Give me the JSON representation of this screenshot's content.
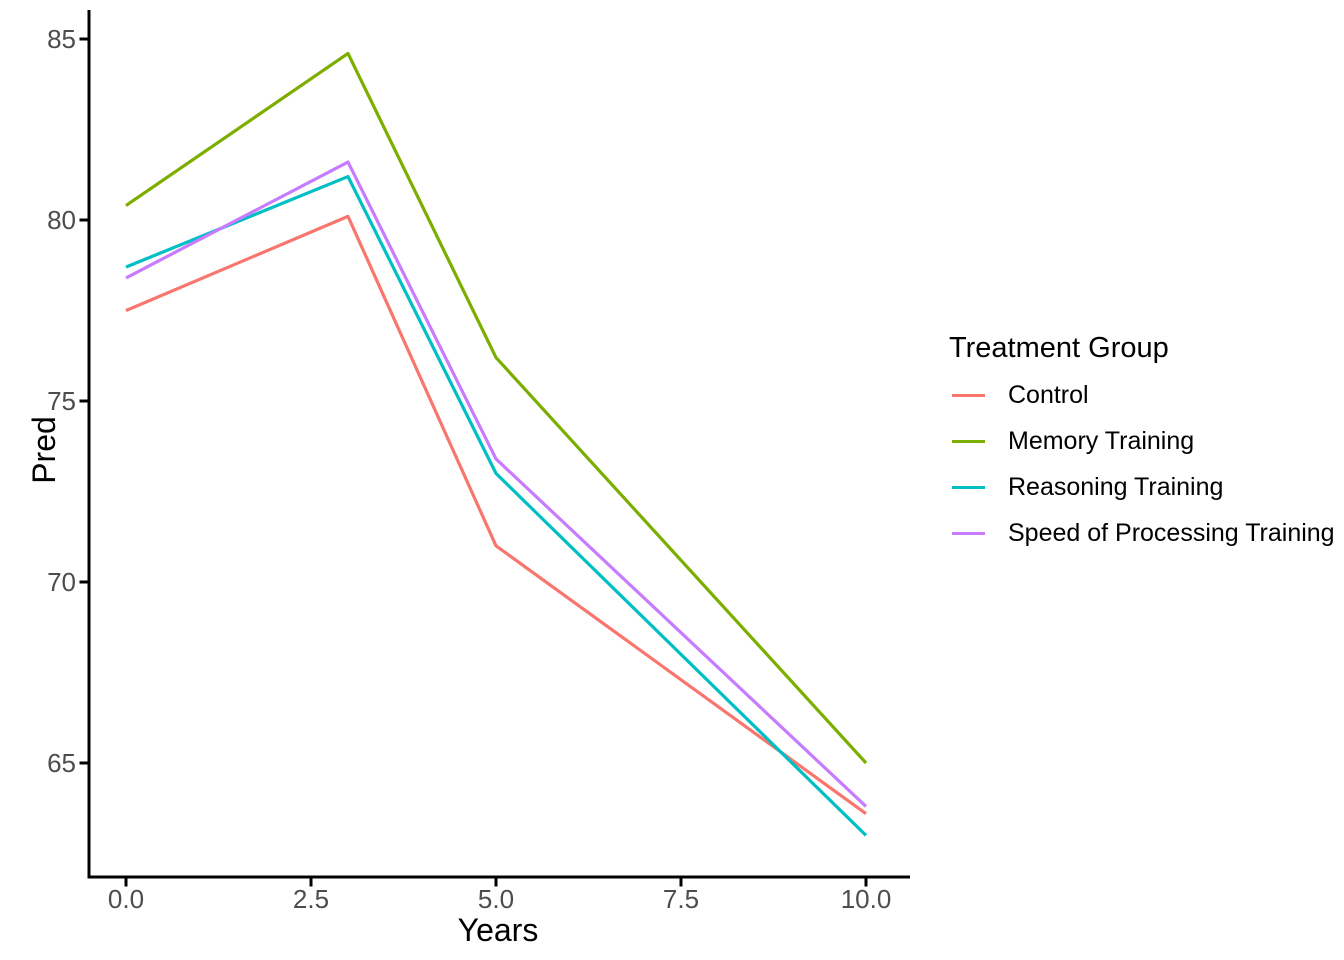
{
  "chart_data": {
    "type": "line",
    "title": "",
    "xlabel": "Years",
    "ylabel": "Pred",
    "x": [
      0,
      3,
      5,
      10
    ],
    "series": [
      {
        "name": "Control",
        "color": "#F8766D",
        "values": [
          77.5,
          80.1,
          71.0,
          63.6
        ]
      },
      {
        "name": "Memory Training",
        "color": "#7CAE00",
        "values": [
          80.4,
          84.6,
          76.2,
          65.0
        ]
      },
      {
        "name": "Reasoning Training",
        "color": "#00BFC4",
        "values": [
          78.7,
          81.2,
          73.0,
          63.0
        ]
      },
      {
        "name": "Speed of Processing Training",
        "color": "#C77CFF",
        "values": [
          78.4,
          81.6,
          73.4,
          63.8
        ]
      }
    ],
    "x_ticks": {
      "values": [
        0,
        2.5,
        5,
        7.5,
        10
      ],
      "labels": [
        "0.0",
        "2.5",
        "5.0",
        "7.5",
        "10.0"
      ]
    },
    "y_ticks": {
      "values": [
        65,
        70,
        75,
        80,
        85
      ],
      "labels": [
        "65",
        "70",
        "75",
        "80",
        "85"
      ]
    },
    "xlim": [
      -0.5,
      10.6
    ],
    "ylim": [
      61.9,
      85.8
    ],
    "grid": false,
    "legend": {
      "title": "Treatment Group",
      "position": "right"
    },
    "styles": {
      "background": "#FFFFFF",
      "axis_color": "#000000",
      "tick_label_color": "#4D4D4D",
      "text_color": "#000000",
      "line_width": 3.2
    }
  }
}
